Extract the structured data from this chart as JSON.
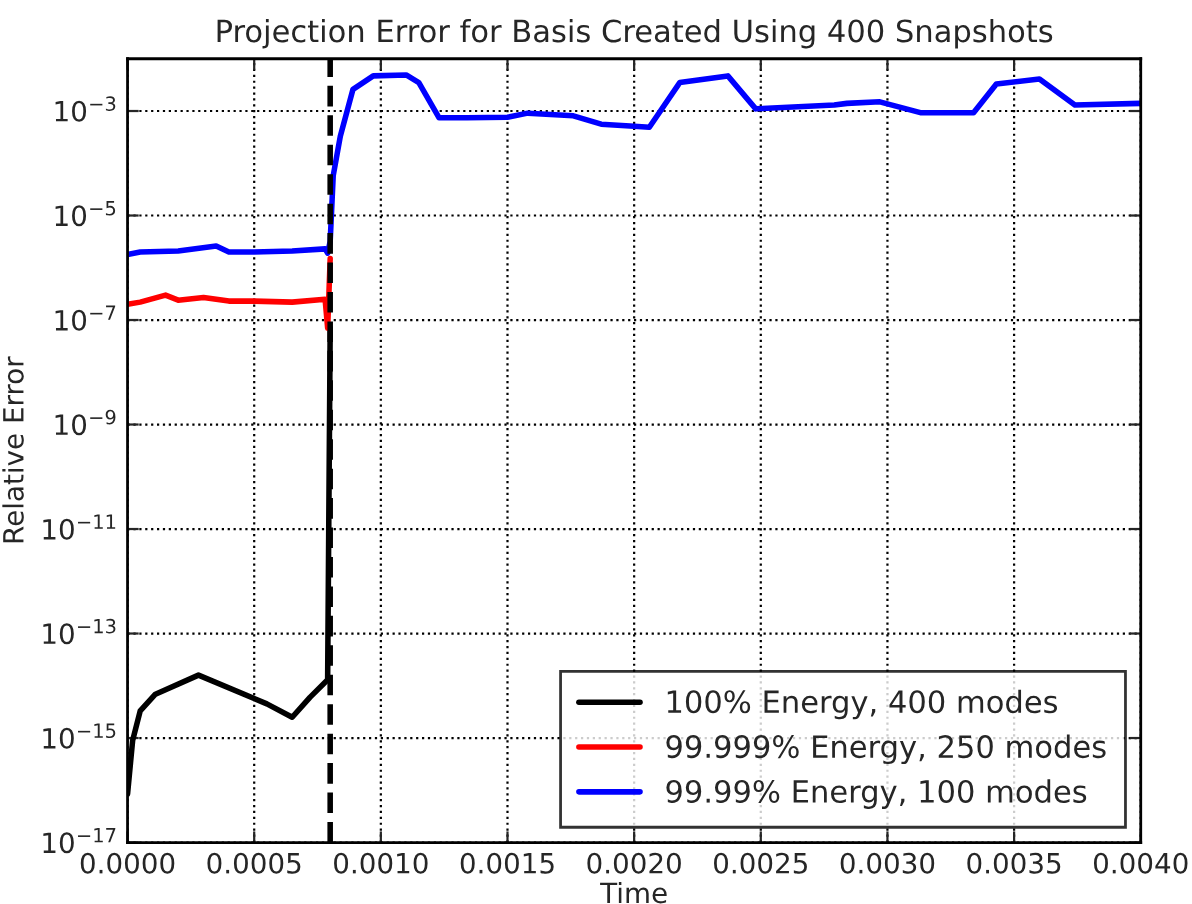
{
  "chart_data": {
    "type": "line",
    "title": "Projection Error for Basis Created Using 400 Snapshots",
    "xlabel": "Time",
    "ylabel": "Relative Error",
    "log": "y",
    "grid": true,
    "legend": "bottom right",
    "line_style": "solid",
    "xlim": [
      0,
      0.004
    ],
    "ylim": [
      1e-17,
      0.01
    ],
    "xticks": [
      {
        "value": 0,
        "label": "0.0000"
      },
      {
        "value": 0.0005,
        "label": "0.0005"
      },
      {
        "value": 0.001,
        "label": "0.0010"
      },
      {
        "value": 0.0015,
        "label": "0.0015"
      },
      {
        "value": 0.002,
        "label": "0.0020"
      },
      {
        "value": 0.0025,
        "label": "0.0025"
      },
      {
        "value": 0.003,
        "label": "0.0030"
      },
      {
        "value": 0.0035,
        "label": "0.0035"
      },
      {
        "value": 0.004,
        "label": "0.0040"
      }
    ],
    "yticks": [
      {
        "value": 1e-17,
        "label": "10$^{−17}$"
      },
      {
        "value": 1e-15,
        "label": "10$^{−15}$"
      },
      {
        "value": 1e-13,
        "label": "10$^{−13}$"
      },
      {
        "value": 1e-11,
        "label": "10$^{−11}$"
      },
      {
        "value": 1e-09,
        "label": "10$^{−9}$"
      },
      {
        "value": 1e-07,
        "label": "10$^{−7}$"
      },
      {
        "value": 1e-05,
        "label": "10$^{−5}$"
      },
      {
        "value": 0.001,
        "label": "10$^{−3}$"
      }
    ],
    "ref_lines": [
      {
        "axis": "x",
        "value": 0.0008,
        "color": "#000000",
        "line_style": "dashed"
      }
    ],
    "series": [
      {
        "name": "100% Energy, 400 modes",
        "color": "#000000",
        "x": [
          0,
          2e-05,
          5e-05,
          0.00011,
          0.00028,
          0.00055,
          0.00065,
          0.00072,
          0.00079,
          0.0008
        ],
        "values": [
          8.5e-17,
          8.9e-16,
          3.3e-15,
          6.9e-15,
          1.6e-14,
          4.5e-15,
          2.5e-15,
          6e-15,
          1.3e-14,
          7e-08
        ]
      },
      {
        "name": "99.999% Energy, 250 modes",
        "color": "#ff0000",
        "x": [
          0,
          5e-05,
          0.00015,
          0.0002,
          0.0003,
          0.0004,
          0.0005,
          0.00065,
          0.00078,
          0.00079,
          0.0008
        ],
        "values": [
          2e-07,
          2.2e-07,
          3e-07,
          2.4e-07,
          2.7e-07,
          2.3e-07,
          2.3e-07,
          2.2e-07,
          2.5e-07,
          7e-08,
          1.5e-06
        ]
      },
      {
        "name": "99.99% Energy, 100 modes",
        "color": "#0000ff",
        "x": [
          0,
          5e-05,
          0.0002,
          0.00035,
          0.0004,
          0.0005,
          0.00065,
          0.00078,
          0.00079,
          0.0008,
          0.000812,
          0.00084,
          0.00089,
          0.00097,
          0.0011,
          0.00115,
          0.00123,
          0.00134,
          0.0015,
          0.00158,
          0.00176,
          0.00187,
          0.002,
          0.00206,
          0.00218,
          0.00237,
          0.00248,
          0.00279,
          0.00284,
          0.00297,
          0.00313,
          0.00334,
          0.00343,
          0.0036,
          0.00374,
          0.004
        ],
        "values": [
          1.8e-06,
          2e-06,
          2.1e-06,
          2.6e-06,
          2e-06,
          2e-06,
          2.1e-06,
          2.3e-06,
          1.9e-06,
          3.2e-06,
          5.8e-05,
          0.00033,
          0.0026,
          0.0047,
          0.0049,
          0.0035,
          0.00074,
          0.00074,
          0.00076,
          0.00091,
          0.00081,
          0.00056,
          0.00051,
          0.00049,
          0.0035,
          0.0047,
          0.0011,
          0.0013,
          0.0014,
          0.0015,
          0.00093,
          0.00093,
          0.0033,
          0.0041,
          0.0013,
          0.0014
        ]
      }
    ]
  }
}
